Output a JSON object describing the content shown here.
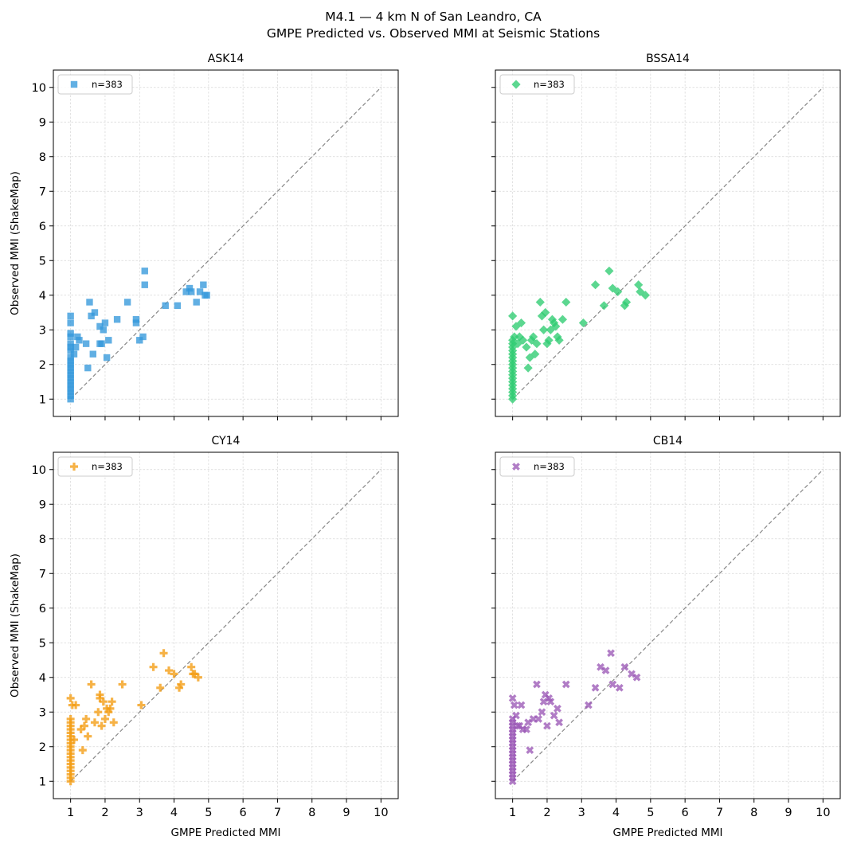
{
  "figure": {
    "title_line1": "M4.1 — 4 km N of San Leandro, CA",
    "title_line2": "GMPE Predicted vs. Observed MMI at Seismic Stations"
  },
  "chart_data": [
    {
      "type": "scatter",
      "title": "ASK14",
      "xlabel": "",
      "ylabel": "Observed MMI (ShakeMap)",
      "xlim": [
        0.5,
        10.5
      ],
      "ylim": [
        0.5,
        10.5
      ],
      "xticks": [
        "1",
        "2",
        "3",
        "4",
        "5",
        "6",
        "7",
        "8",
        "9",
        "10"
      ],
      "yticks": [
        "1",
        "2",
        "3",
        "4",
        "5",
        "6",
        "7",
        "8",
        "9",
        "10"
      ],
      "show_x_tick_labels": false,
      "show_y_tick_labels": true,
      "grid": true,
      "reference_line": [
        [
          1,
          1
        ],
        [
          10,
          10
        ]
      ],
      "legend": {
        "position": "upper-left",
        "label": "n=383"
      },
      "marker": "square",
      "color": "#3498db",
      "series": [
        {
          "label": "n=383",
          "x": [
            1,
            1,
            1,
            1,
            1,
            1,
            1,
            1,
            1,
            1,
            1,
            1,
            1,
            1,
            1,
            1,
            1,
            1,
            1,
            1,
            1.1,
            1.15,
            1.2,
            1.25,
            1.45,
            1.5,
            1.55,
            1.6,
            1.65,
            1.7,
            1.85,
            1.85,
            1.9,
            1.95,
            2.0,
            2.05,
            2.1,
            2.35,
            2.65,
            2.9,
            2.9,
            3.0,
            3.1,
            3.15,
            3.15,
            3.75,
            4.1,
            4.35,
            4.45,
            4.5,
            4.65,
            4.75,
            4.85,
            4.9,
            4.95
          ],
          "y": [
            1.0,
            1.2,
            1.4,
            1.6,
            1.8,
            2.0,
            2.2,
            2.4,
            2.6,
            2.8,
            2.9,
            3.2,
            3.4,
            1.1,
            1.3,
            1.5,
            1.7,
            1.9,
            2.1,
            2.5,
            2.3,
            2.5,
            2.8,
            2.7,
            2.6,
            1.9,
            3.8,
            3.4,
            2.3,
            3.5,
            2.6,
            3.1,
            2.6,
            3.0,
            3.2,
            2.2,
            2.7,
            3.3,
            3.8,
            3.2,
            3.3,
            2.7,
            2.8,
            4.7,
            4.3,
            3.7,
            3.7,
            4.1,
            4.2,
            4.1,
            3.8,
            4.1,
            4.3,
            4.0,
            4.0
          ]
        }
      ]
    },
    {
      "type": "scatter",
      "title": "BSSA14",
      "xlabel": "",
      "ylabel": "",
      "xlim": [
        0.5,
        10.5
      ],
      "ylim": [
        0.5,
        10.5
      ],
      "xticks": [
        "1",
        "2",
        "3",
        "4",
        "5",
        "6",
        "7",
        "8",
        "9",
        "10"
      ],
      "yticks": [
        "1",
        "2",
        "3",
        "4",
        "5",
        "6",
        "7",
        "8",
        "9",
        "10"
      ],
      "show_x_tick_labels": false,
      "show_y_tick_labels": false,
      "grid": true,
      "reference_line": [
        [
          1,
          1
        ],
        [
          10,
          10
        ]
      ],
      "legend": {
        "position": "upper-left",
        "label": "n=383"
      },
      "marker": "diamond",
      "color": "#2ecc71",
      "series": [
        {
          "label": "n=383",
          "x": [
            1,
            1,
            1,
            1,
            1,
            1,
            1,
            1,
            1,
            1,
            1,
            1,
            1,
            1,
            1,
            1,
            1,
            1,
            1,
            1.05,
            1.1,
            1.15,
            1.2,
            1.25,
            1.3,
            1.4,
            1.45,
            1.5,
            1.55,
            1.6,
            1.65,
            1.7,
            1.8,
            1.85,
            1.9,
            1.95,
            2.0,
            2.05,
            2.1,
            2.15,
            2.2,
            2.25,
            2.3,
            2.35,
            2.45,
            2.55,
            3.05,
            3.4,
            3.65,
            3.8,
            3.9,
            4.05,
            4.25,
            4.3,
            4.65,
            4.7,
            4.85
          ],
          "y": [
            1.0,
            1.1,
            1.2,
            1.3,
            1.4,
            1.5,
            1.6,
            1.7,
            1.8,
            1.9,
            2.0,
            2.1,
            2.2,
            2.3,
            2.4,
            2.5,
            2.6,
            2.7,
            3.4,
            2.8,
            3.1,
            2.6,
            2.8,
            3.2,
            2.7,
            2.5,
            1.9,
            2.2,
            2.7,
            2.8,
            2.3,
            2.6,
            3.8,
            3.4,
            3.0,
            3.5,
            2.6,
            2.7,
            3.0,
            3.3,
            3.2,
            3.1,
            2.8,
            2.7,
            3.3,
            3.8,
            3.2,
            4.3,
            3.7,
            4.7,
            4.2,
            4.1,
            3.7,
            3.8,
            4.3,
            4.1,
            4.0
          ]
        }
      ]
    },
    {
      "type": "scatter",
      "title": "CY14",
      "xlabel": "GMPE Predicted MMI",
      "ylabel": "Observed MMI (ShakeMap)",
      "xlim": [
        0.5,
        10.5
      ],
      "ylim": [
        0.5,
        10.5
      ],
      "xticks": [
        "1",
        "2",
        "3",
        "4",
        "5",
        "6",
        "7",
        "8",
        "9",
        "10"
      ],
      "yticks": [
        "1",
        "2",
        "3",
        "4",
        "5",
        "6",
        "7",
        "8",
        "9",
        "10"
      ],
      "show_x_tick_labels": true,
      "show_y_tick_labels": true,
      "grid": true,
      "reference_line": [
        [
          1,
          1
        ],
        [
          10,
          10
        ]
      ],
      "legend": {
        "position": "upper-left",
        "label": "n=383"
      },
      "marker": "plus",
      "color": "#f39c12",
      "series": [
        {
          "label": "n=383",
          "x": [
            1,
            1,
            1,
            1,
            1,
            1,
            1,
            1,
            1,
            1,
            1,
            1,
            1,
            1,
            1,
            1,
            1,
            1,
            1,
            1,
            1.05,
            1.1,
            1.15,
            1.3,
            1.35,
            1.4,
            1.45,
            1.5,
            1.6,
            1.7,
            1.8,
            1.85,
            1.85,
            1.9,
            1.95,
            2.0,
            2.05,
            2.1,
            2.15,
            2.2,
            2.25,
            2.5,
            3.05,
            3.4,
            3.6,
            3.7,
            3.85,
            4.0,
            4.15,
            4.2,
            4.5,
            4.55,
            4.6,
            4.7
          ],
          "y": [
            1.0,
            1.1,
            1.2,
            1.3,
            1.4,
            1.5,
            1.6,
            1.7,
            1.8,
            1.9,
            2.0,
            2.1,
            2.2,
            2.3,
            2.4,
            2.5,
            2.6,
            2.7,
            2.8,
            3.4,
            3.2,
            2.2,
            3.2,
            2.5,
            1.9,
            2.6,
            2.8,
            2.3,
            3.8,
            2.7,
            3.0,
            3.5,
            3.4,
            2.6,
            3.3,
            2.8,
            3.1,
            3.0,
            3.1,
            3.3,
            2.7,
            3.8,
            3.2,
            4.3,
            3.7,
            4.7,
            4.2,
            4.1,
            3.7,
            3.8,
            4.3,
            4.1,
            4.1,
            4.0
          ]
        }
      ]
    },
    {
      "type": "scatter",
      "title": "CB14",
      "xlabel": "GMPE Predicted MMI",
      "ylabel": "",
      "xlim": [
        0.5,
        10.5
      ],
      "ylim": [
        0.5,
        10.5
      ],
      "xticks": [
        "1",
        "2",
        "3",
        "4",
        "5",
        "6",
        "7",
        "8",
        "9",
        "10"
      ],
      "yticks": [
        "1",
        "2",
        "3",
        "4",
        "5",
        "6",
        "7",
        "8",
        "9",
        "10"
      ],
      "show_x_tick_labels": true,
      "show_y_tick_labels": false,
      "grid": true,
      "reference_line": [
        [
          1,
          1
        ],
        [
          10,
          10
        ]
      ],
      "legend": {
        "position": "upper-left",
        "label": "n=383"
      },
      "marker": "x",
      "color": "#9b59b6",
      "series": [
        {
          "label": "n=383",
          "x": [
            1,
            1,
            1,
            1,
            1,
            1,
            1,
            1,
            1,
            1,
            1,
            1,
            1,
            1,
            1,
            1,
            1,
            1,
            1,
            1,
            1.05,
            1.1,
            1.15,
            1.2,
            1.25,
            1.3,
            1.4,
            1.45,
            1.5,
            1.6,
            1.7,
            1.75,
            1.85,
            1.9,
            1.95,
            2.0,
            2.05,
            2.1,
            2.2,
            2.3,
            2.35,
            2.55,
            3.2,
            3.4,
            3.55,
            3.7,
            3.85,
            3.9,
            4.1,
            4.25,
            4.45,
            4.6
          ],
          "y": [
            1.0,
            1.1,
            1.2,
            1.3,
            1.4,
            1.5,
            1.6,
            1.7,
            1.8,
            1.9,
            2.0,
            2.1,
            2.2,
            2.3,
            2.4,
            2.5,
            2.6,
            2.7,
            2.8,
            3.4,
            3.2,
            2.9,
            2.6,
            2.6,
            3.2,
            2.5,
            2.5,
            2.7,
            1.9,
            2.8,
            3.8,
            2.8,
            3.0,
            3.3,
            3.5,
            2.6,
            3.4,
            3.3,
            2.9,
            3.1,
            2.7,
            3.8,
            3.2,
            3.7,
            4.3,
            4.2,
            4.7,
            3.8,
            3.7,
            4.3,
            4.1,
            4.0
          ]
        }
      ]
    }
  ]
}
